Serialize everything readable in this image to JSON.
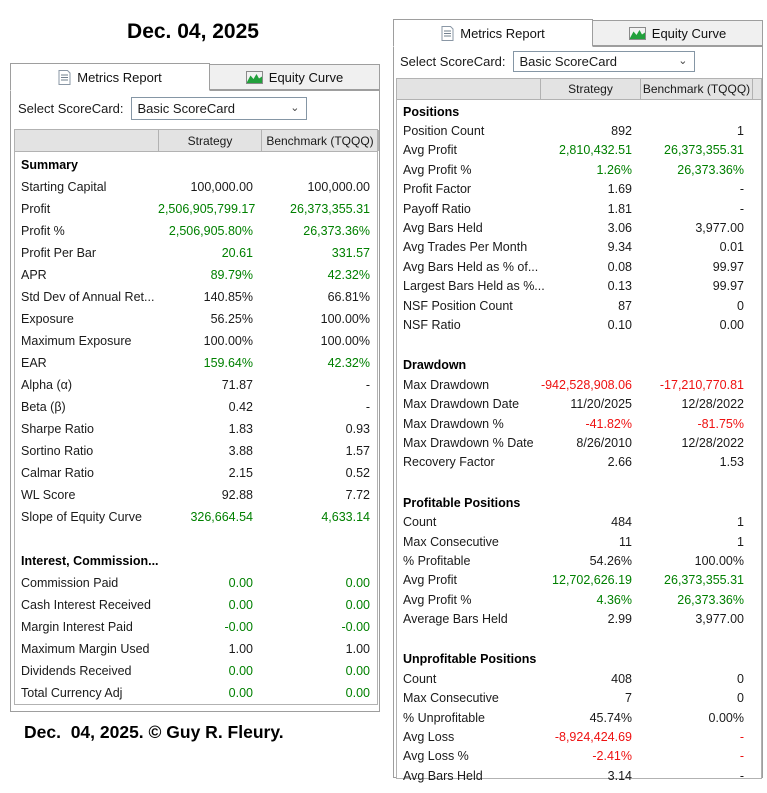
{
  "page": {
    "title": "Dec. 04, 2025",
    "footer": "Dec.  04, 2025. © Guy R. Fleury."
  },
  "colors": {
    "plain": "#1a1a1a",
    "green": "#008000",
    "red": "#ee1111"
  },
  "panels": [
    {
      "tabs": [
        {
          "label": "Metrics Report",
          "icon": "document-icon",
          "active": true
        },
        {
          "label": "Equity Curve",
          "icon": "equity-curve-icon",
          "active": false
        }
      ],
      "scorecard": {
        "label": "Select ScoreCard:",
        "value": "Basic ScoreCard"
      },
      "columns": [
        "",
        "Strategy",
        "Benchmark (TQQQ)"
      ],
      "sections": [
        {
          "title": "Summary",
          "rows": [
            [
              "Starting Capital",
              "100,000.00",
              "100,000.00",
              "plain"
            ],
            [
              "Profit",
              "2,506,905,799.17",
              "26,373,355.31",
              "green"
            ],
            [
              "Profit %",
              "2,506,905.80%",
              "26,373.36%",
              "green"
            ],
            [
              "Profit Per Bar",
              "20.61",
              "331.57",
              "green"
            ],
            [
              "APR",
              "89.79%",
              "42.32%",
              "green"
            ],
            [
              "Std Dev of Annual Ret...",
              "140.85%",
              "66.81%",
              "plain"
            ],
            [
              "Exposure",
              "56.25%",
              "100.00%",
              "plain"
            ],
            [
              "Maximum Exposure",
              "100.00%",
              "100.00%",
              "plain"
            ],
            [
              "EAR",
              "159.64%",
              "42.32%",
              "green"
            ],
            [
              "Alpha (α)",
              "71.87",
              "-",
              "plain"
            ],
            [
              "Beta (β)",
              "0.42",
              "-",
              "plain"
            ],
            [
              "Sharpe Ratio",
              "1.83",
              "0.93",
              "plain"
            ],
            [
              "Sortino Ratio",
              "3.88",
              "1.57",
              "plain"
            ],
            [
              "Calmar Ratio",
              "2.15",
              "0.52",
              "plain"
            ],
            [
              "WL Score",
              "92.88",
              "7.72",
              "plain"
            ],
            [
              "Slope of Equity Curve",
              "326,664.54",
              "4,633.14",
              "green"
            ]
          ]
        },
        {
          "title": "Interest, Commission...",
          "rows": [
            [
              "Commission Paid",
              "0.00",
              "0.00",
              "green"
            ],
            [
              "Cash Interest Received",
              "0.00",
              "0.00",
              "green"
            ],
            [
              "Margin Interest Paid",
              "-0.00",
              "-0.00",
              "green"
            ],
            [
              "Maximum Margin Used",
              "1.00",
              "1.00",
              "plain"
            ],
            [
              "Dividends Received",
              "0.00",
              "0.00",
              "green"
            ],
            [
              "Total Currency Adj",
              "0.00",
              "0.00",
              "green"
            ]
          ]
        }
      ]
    },
    {
      "tabs": [
        {
          "label": "Metrics Report",
          "icon": "document-icon",
          "active": true
        },
        {
          "label": "Equity Curve",
          "icon": "equity-curve-icon",
          "active": false
        }
      ],
      "scorecard": {
        "label": "Select ScoreCard:",
        "value": "Basic ScoreCard"
      },
      "columns": [
        "",
        "Strategy",
        "Benchmark (TQQQ)"
      ],
      "sections": [
        {
          "title": "Positions",
          "rows": [
            [
              "Position Count",
              "892",
              "1",
              "plain"
            ],
            [
              "Avg Profit",
              "2,810,432.51",
              "26,373,355.31",
              "green"
            ],
            [
              "Avg Profit %",
              "1.26%",
              "26,373.36%",
              "green"
            ],
            [
              "Profit Factor",
              "1.69",
              "-",
              "plain"
            ],
            [
              "Payoff Ratio",
              "1.81",
              "-",
              "plain"
            ],
            [
              "Avg Bars Held",
              "3.06",
              "3,977.00",
              "plain"
            ],
            [
              "Avg Trades Per Month",
              "9.34",
              "0.01",
              "plain"
            ],
            [
              "Avg Bars Held as % of...",
              "0.08",
              "99.97",
              "plain"
            ],
            [
              "Largest Bars Held as %...",
              "0.13",
              "99.97",
              "plain"
            ],
            [
              "NSF Position Count",
              "87",
              "0",
              "plain"
            ],
            [
              "NSF Ratio",
              "0.10",
              "0.00",
              "plain"
            ]
          ]
        },
        {
          "title": "Drawdown",
          "rows": [
            [
              "Max Drawdown",
              "-942,528,908.06",
              "-17,210,770.81",
              "red"
            ],
            [
              "Max Drawdown Date",
              "11/20/2025",
              "12/28/2022",
              "plain"
            ],
            [
              "Max Drawdown %",
              "-41.82%",
              "-81.75%",
              "red"
            ],
            [
              "Max Drawdown % Date",
              "8/26/2010",
              "12/28/2022",
              "plain"
            ],
            [
              "Recovery Factor",
              "2.66",
              "1.53",
              "plain"
            ]
          ]
        },
        {
          "title": "Profitable Positions",
          "rows": [
            [
              "Count",
              "484",
              "1",
              "plain"
            ],
            [
              "Max Consecutive",
              "11",
              "1",
              "plain"
            ],
            [
              "% Profitable",
              "54.26%",
              "100.00%",
              "plain"
            ],
            [
              "Avg Profit",
              "12,702,626.19",
              "26,373,355.31",
              "green"
            ],
            [
              "Avg Profit %",
              "4.36%",
              "26,373.36%",
              "green"
            ],
            [
              "Average Bars Held",
              "2.99",
              "3,977.00",
              "plain"
            ]
          ]
        },
        {
          "title": "Unprofitable Positions",
          "rows": [
            [
              "Count",
              "408",
              "0",
              "plain"
            ],
            [
              "Max Consecutive",
              "7",
              "0",
              "plain"
            ],
            [
              "% Unprofitable",
              "45.74%",
              "0.00%",
              "plain"
            ],
            [
              "Avg Loss",
              "-8,924,424.69",
              "-",
              "red"
            ],
            [
              "Avg Loss %",
              "-2.41%",
              "-",
              "red"
            ],
            [
              "Avg Bars Held",
              "3.14",
              "-",
              "plain"
            ]
          ]
        }
      ]
    }
  ]
}
